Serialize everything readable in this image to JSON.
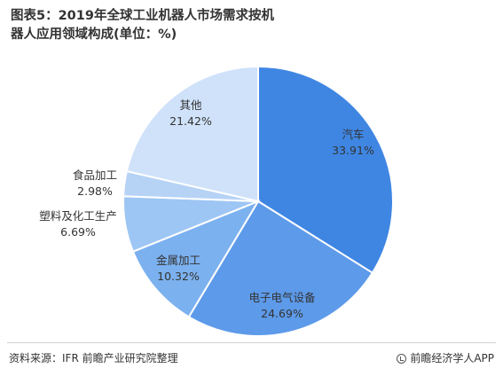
{
  "title": "图表5：2019年全球工业机器人市场需求按机器人应用领域构成(单位：%)",
  "source": "资料来源：IFR 前瞻产业研究院整理",
  "brand": "前瞻经济学人APP",
  "chart_data": {
    "type": "pie",
    "unit": "%",
    "slices": [
      {
        "label": "汽车",
        "value": 33.91,
        "display": "33.91%",
        "color": "#3f86e3"
      },
      {
        "label": "电子电气设备",
        "value": 24.69,
        "display": "24.69%",
        "color": "#5d9ae9"
      },
      {
        "label": "金属加工",
        "value": 10.32,
        "display": "10.32%",
        "color": "#7cb1ef"
      },
      {
        "label": "塑料及化工生产",
        "value": 6.69,
        "display": "6.69%",
        "color": "#9ec6f4"
      },
      {
        "label": "食品加工",
        "value": 2.98,
        "display": "2.98%",
        "color": "#b6d3f6"
      },
      {
        "label": "其他",
        "value": 21.42,
        "display": "21.42%",
        "color": "#cfe2fa"
      }
    ]
  }
}
